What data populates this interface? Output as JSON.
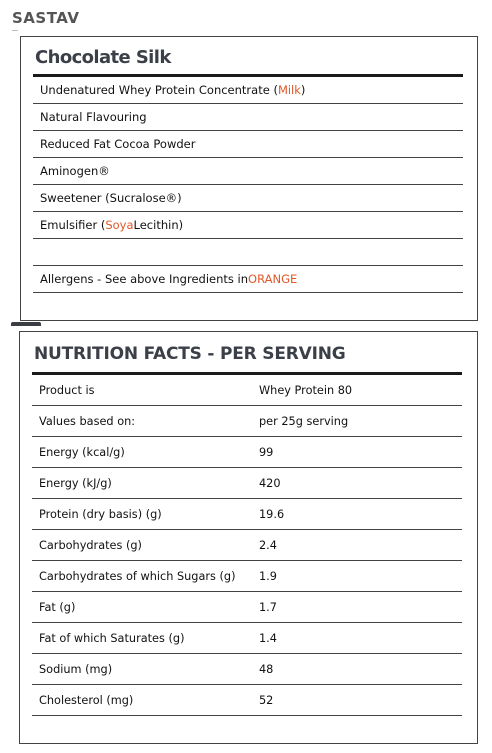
{
  "page": {
    "heading": "SASTAV"
  },
  "ingredients": {
    "title": "Chocolate Silk",
    "rows": [
      {
        "prefix": "Undenatured Whey Protein Concentrate (",
        "highlight": "Milk",
        "suffix": ")"
      },
      {
        "prefix": "Natural Flavouring",
        "highlight": "",
        "suffix": ""
      },
      {
        "prefix": "Reduced Fat Cocoa Powder",
        "highlight": "",
        "suffix": ""
      },
      {
        "prefix": "Aminogen®",
        "highlight": "",
        "suffix": ""
      },
      {
        "prefix": "Sweetener (Sucralose®)",
        "highlight": "",
        "suffix": ""
      },
      {
        "prefix": "Emulsifier (",
        "highlight": "Soya",
        "suffix": " Lecithin)"
      },
      {
        "prefix": "",
        "highlight": "",
        "suffix": ""
      },
      {
        "prefix": "Allergens - See above Ingredients in ",
        "highlight": "ORANGE",
        "suffix": ""
      }
    ],
    "highlight_color": "#e0572a"
  },
  "nutrition": {
    "title": "NUTRITION FACTS - PER SERVING",
    "rows": [
      {
        "label": "Product is",
        "value": "Whey Protein 80"
      },
      {
        "label": "Values based on:",
        "value": "per 25g serving"
      },
      {
        "label": "Energy (kcal/g)",
        "value": "99"
      },
      {
        "label": "Energy (kJ/g)",
        "value": "420"
      },
      {
        "label": "Protein (dry basis) (g)",
        "value": "19.6"
      },
      {
        "label": "Carbohydrates (g)",
        "value": "2.4"
      },
      {
        "label": "Carbohydrates of which Sugars (g)",
        "value": "1.9"
      },
      {
        "label": "Fat (g)",
        "value": "1.7"
      },
      {
        "label": "Fat of which Saturates (g)",
        "value": "1.4"
      },
      {
        "label": "Sodium (mg)",
        "value": "48"
      },
      {
        "label": "Cholesterol (mg)",
        "value": "52"
      }
    ]
  }
}
